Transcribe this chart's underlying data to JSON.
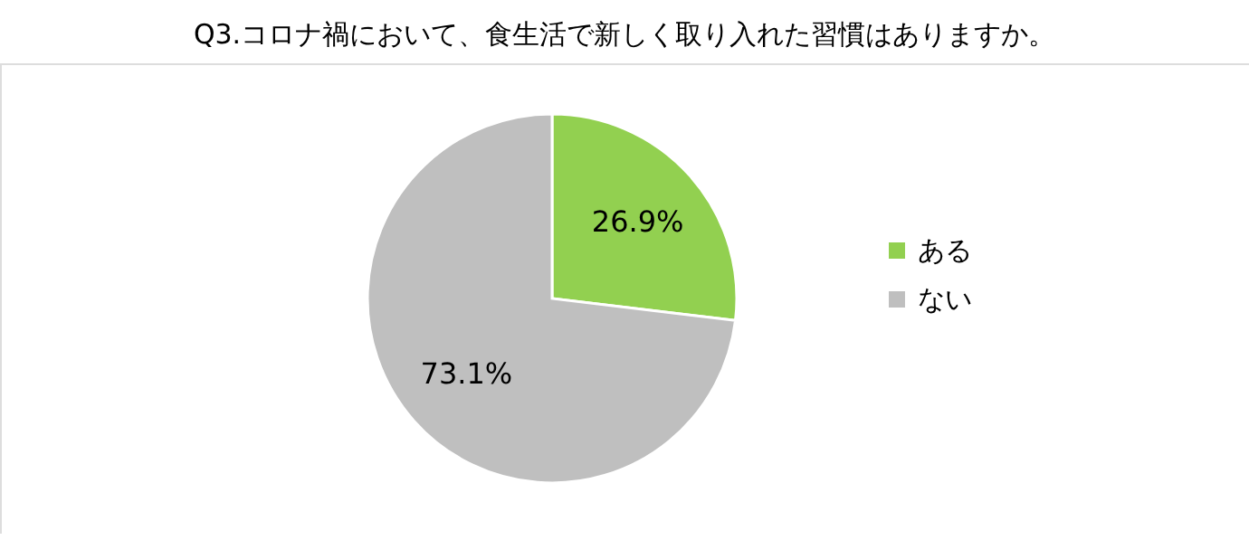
{
  "chart_data": {
    "type": "pie",
    "title": "Q3.コロナ禍において、食生活で新しく取り入れた習慣はありますか。",
    "categories": [
      "ある",
      "ない"
    ],
    "values": [
      26.9,
      73.1
    ],
    "colors": [
      "#92d050",
      "#bfbfbf"
    ],
    "value_labels": [
      "26.9%",
      "73.1%"
    ],
    "legend": "right"
  }
}
